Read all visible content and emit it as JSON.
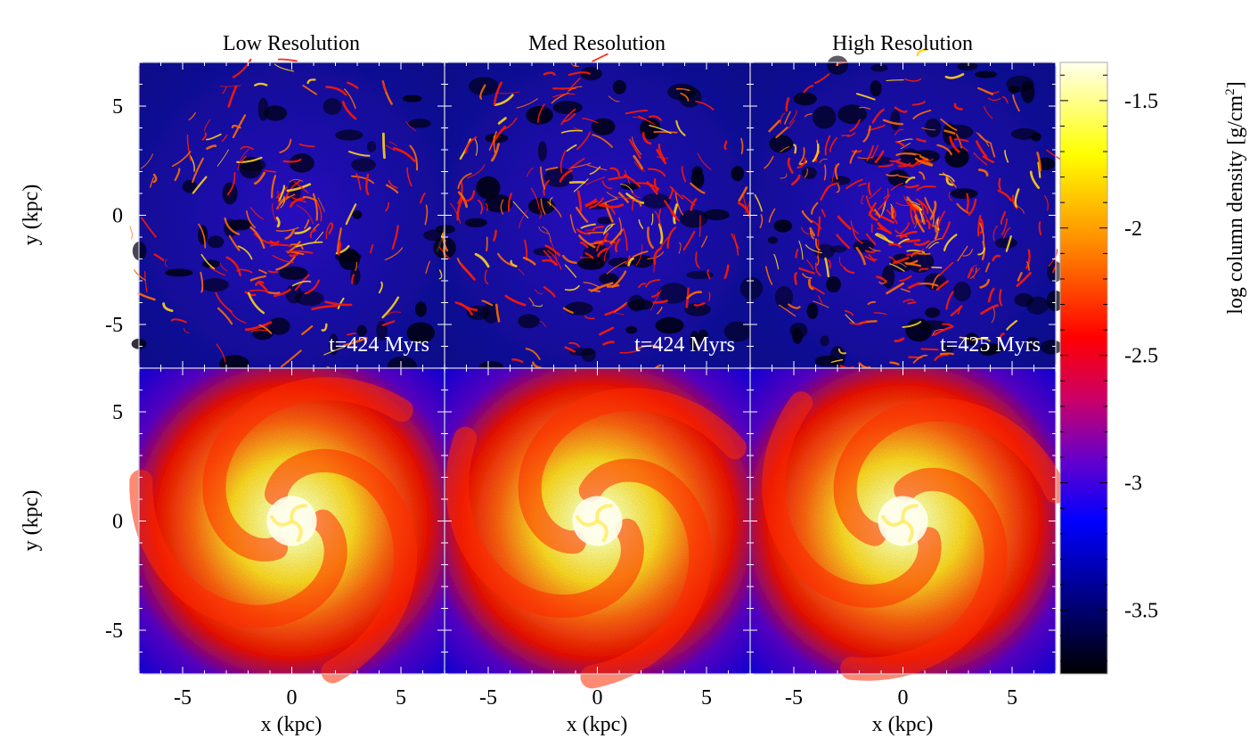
{
  "chart_data": {
    "type": "heatmap",
    "layout": "2 rows x 3 columns of shared-axis column-density maps",
    "columns": [
      {
        "title": "Low Resolution",
        "time_label": "t=424 Myrs"
      },
      {
        "title": "Med Resolution",
        "time_label": "t=424 Myrs"
      },
      {
        "title": "High Resolution",
        "time_label": "t=425 Myrs"
      }
    ],
    "rows": [
      {
        "description": "gas column density, filamentary spiral structure"
      },
      {
        "description": "smooth spiral disc with bright central bulge"
      }
    ],
    "xlabel": "x (kpc)",
    "ylabel": "y (kpc)",
    "xlim": [
      -7,
      7
    ],
    "ylim": [
      -7,
      7
    ],
    "x_ticks": [
      "-5",
      "0",
      "5"
    ],
    "y_ticks": [
      "5",
      "0",
      "-5"
    ],
    "colorbar": {
      "label": "log column density [g/cm",
      "label_sup": "2",
      "label_end": "]",
      "range": [
        -3.75,
        -1.35
      ],
      "tick_labels": [
        "-1.5",
        "-2",
        "-2.5",
        "-3",
        "-3.5"
      ],
      "tick_values": [
        -1.5,
        -2.0,
        -2.5,
        -3.0,
        -3.5
      ],
      "colormap": [
        {
          "v": 0.0,
          "c": "#000000"
        },
        {
          "v": 0.12,
          "c": "#00007f"
        },
        {
          "v": 0.25,
          "c": "#0000ff"
        },
        {
          "v": 0.35,
          "c": "#6600cc"
        },
        {
          "v": 0.45,
          "c": "#cc0066"
        },
        {
          "v": 0.55,
          "c": "#ff0000"
        },
        {
          "v": 0.7,
          "c": "#ff8800"
        },
        {
          "v": 0.85,
          "c": "#ffff00"
        },
        {
          "v": 1.0,
          "c": "#ffffee"
        }
      ]
    }
  }
}
